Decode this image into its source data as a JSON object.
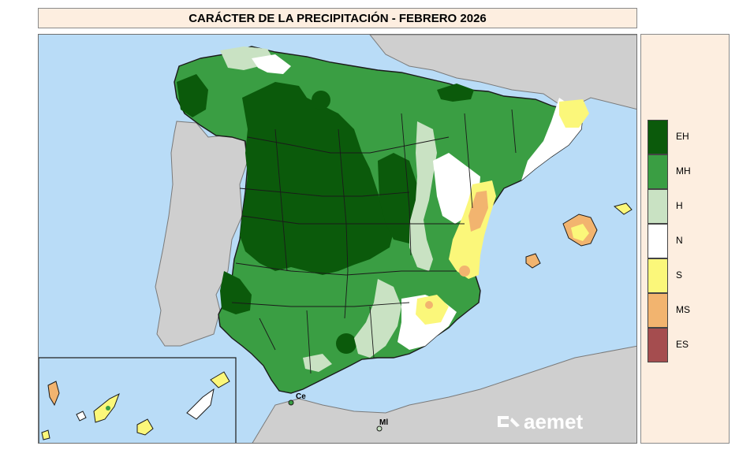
{
  "title": "CARÁCTER DE LA PRECIPITACIÓN - FEBRERO 2026",
  "legend": [
    {
      "code": "EH",
      "color": "#0b5a0b"
    },
    {
      "code": "MH",
      "color": "#3a9e43"
    },
    {
      "code": "H",
      "color": "#c9e2c3"
    },
    {
      "code": "N",
      "color": "#ffffff"
    },
    {
      "code": "S",
      "color": "#fbf77a"
    },
    {
      "code": "MS",
      "color": "#f2b46f"
    },
    {
      "code": "ES",
      "color": "#a54d4f"
    }
  ],
  "places": {
    "ceuta": "Ce",
    "melilla": "Ml"
  },
  "logo": "aemet",
  "colors": {
    "sea": "#b9dcf7",
    "land_outside": "#cfcfcf",
    "border": "#1a1a1a"
  }
}
